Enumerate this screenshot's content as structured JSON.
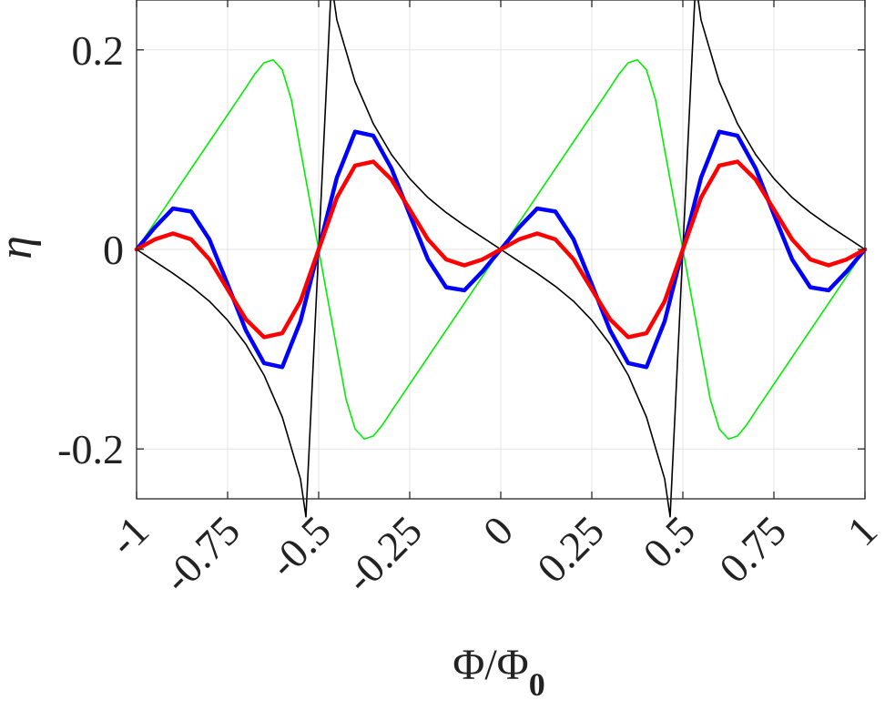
{
  "chart_data": {
    "type": "line",
    "title": "",
    "xlabel": "Φ/Φ",
    "xlabel_sub": "0",
    "ylabel": "η",
    "xlim": [
      -1,
      1
    ],
    "ylim": [
      -0.25,
      0.25
    ],
    "x_ticks": [
      -1,
      -0.75,
      -0.5,
      -0.25,
      0,
      0.25,
      0.5,
      0.75,
      1
    ],
    "x_tick_labels": [
      "-1",
      "-0.75",
      "-0.5",
      "-0.25",
      "0",
      "0.25",
      "0.5",
      "0.75",
      "1"
    ],
    "y_ticks": [
      -0.2,
      0,
      0.2
    ],
    "y_tick_labels": [
      "-0.2",
      "0",
      "0.2"
    ],
    "grid": true,
    "legend": "none",
    "x": [
      -1,
      -0.95,
      -0.9,
      -0.85,
      -0.8,
      -0.75,
      -0.7,
      -0.65,
      -0.6,
      -0.55,
      -0.5,
      -0.45,
      -0.4,
      -0.35,
      -0.3,
      -0.25,
      -0.2,
      -0.15,
      -0.1,
      -0.05,
      0,
      0.05,
      0.1,
      0.15,
      0.2,
      0.25,
      0.3,
      0.35,
      0.4,
      0.45,
      0.5,
      0.55,
      0.6,
      0.65,
      0.7,
      0.75,
      0.8,
      0.85,
      0.9,
      0.95,
      1
    ],
    "series": [
      {
        "color": "#000000",
        "stroke_width": 1.6,
        "x": [
          -1,
          -0.95,
          -0.9,
          -0.85,
          -0.8,
          -0.75,
          -0.7,
          -0.65,
          -0.6,
          -0.55,
          -0.535,
          -0.5,
          -0.465,
          -0.45,
          -0.4,
          -0.35,
          -0.3,
          -0.25,
          -0.2,
          -0.15,
          -0.1,
          -0.05,
          0,
          0.05,
          0.1,
          0.15,
          0.2,
          0.25,
          0.3,
          0.35,
          0.4,
          0.45,
          0.465,
          0.5,
          0.535,
          0.55,
          0.6,
          0.65,
          0.7,
          0.75,
          0.8,
          0.85,
          0.9,
          0.95,
          1
        ],
        "values": [
          0,
          -0.012,
          -0.024,
          -0.037,
          -0.052,
          -0.071,
          -0.095,
          -0.126,
          -0.168,
          -0.23,
          -0.268,
          0,
          0.268,
          0.23,
          0.168,
          0.126,
          0.095,
          0.071,
          0.052,
          0.037,
          0.024,
          0.012,
          0,
          -0.012,
          -0.024,
          -0.037,
          -0.052,
          -0.071,
          -0.095,
          -0.126,
          -0.168,
          -0.23,
          -0.268,
          0,
          0.268,
          0.23,
          0.168,
          0.126,
          0.095,
          0.071,
          0.052,
          0.037,
          0.024,
          0.012,
          0
        ]
      },
      {
        "color": "#00ee00",
        "stroke_width": 1.6,
        "x": [
          -1,
          -0.95,
          -0.9,
          -0.85,
          -0.8,
          -0.75,
          -0.7,
          -0.675,
          -0.65,
          -0.625,
          -0.6,
          -0.575,
          -0.55,
          -0.525,
          -0.5,
          -0.475,
          -0.45,
          -0.425,
          -0.4,
          -0.375,
          -0.35,
          -0.325,
          -0.3,
          -0.25,
          -0.2,
          -0.15,
          -0.1,
          -0.05,
          0,
          0.05,
          0.1,
          0.15,
          0.2,
          0.25,
          0.3,
          0.325,
          0.35,
          0.375,
          0.4,
          0.425,
          0.45,
          0.475,
          0.5,
          0.525,
          0.55,
          0.575,
          0.6,
          0.625,
          0.65,
          0.675,
          0.7,
          0.75,
          0.8,
          0.85,
          0.9,
          0.95,
          1
        ],
        "values": [
          0,
          0.027,
          0.054,
          0.081,
          0.108,
          0.135,
          0.162,
          0.176,
          0.187,
          0.19,
          0.18,
          0.15,
          0.1,
          0.05,
          0,
          -0.05,
          -0.1,
          -0.15,
          -0.18,
          -0.19,
          -0.187,
          -0.176,
          -0.162,
          -0.135,
          -0.108,
          -0.081,
          -0.054,
          -0.027,
          0,
          0.027,
          0.054,
          0.081,
          0.108,
          0.135,
          0.162,
          0.176,
          0.187,
          0.19,
          0.18,
          0.15,
          0.1,
          0.05,
          0,
          -0.05,
          -0.1,
          -0.15,
          -0.18,
          -0.19,
          -0.187,
          -0.176,
          -0.162,
          -0.135,
          -0.108,
          -0.081,
          -0.054,
          -0.027,
          0
        ]
      },
      {
        "color": "#0000ff",
        "stroke_width": 4.5,
        "values": [
          0,
          0.022,
          0.041,
          0.038,
          0.01,
          -0.035,
          -0.081,
          -0.114,
          -0.118,
          -0.072,
          0,
          0.072,
          0.118,
          0.114,
          0.081,
          0.035,
          -0.01,
          -0.038,
          -0.041,
          -0.022,
          0,
          0.022,
          0.041,
          0.038,
          0.01,
          -0.035,
          -0.081,
          -0.114,
          -0.118,
          -0.072,
          0,
          0.072,
          0.118,
          0.114,
          0.081,
          0.035,
          -0.01,
          -0.038,
          -0.041,
          -0.022,
          0
        ]
      },
      {
        "color": "#ff0000",
        "stroke_width": 4.5,
        "values": [
          0,
          0.01,
          0.016,
          0.01,
          -0.01,
          -0.04,
          -0.07,
          -0.088,
          -0.084,
          -0.052,
          0,
          0.052,
          0.084,
          0.088,
          0.07,
          0.04,
          0.01,
          -0.01,
          -0.016,
          -0.01,
          0,
          0.01,
          0.016,
          0.01,
          -0.01,
          -0.04,
          -0.07,
          -0.088,
          -0.084,
          -0.052,
          0,
          0.052,
          0.084,
          0.088,
          0.07,
          0.04,
          0.01,
          -0.01,
          -0.016,
          -0.01,
          0
        ]
      }
    ]
  }
}
